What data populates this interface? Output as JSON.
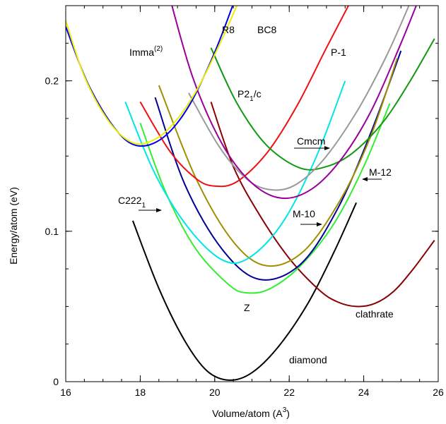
{
  "chart_data": {
    "type": "line",
    "xlabel": "Volume/atom (A",
    "xlabel_sup": "3",
    "xlabel_suffix": ")",
    "ylabel": "Energy/atom (eV)",
    "xlim": [
      16,
      26
    ],
    "ylim": [
      0,
      0.25
    ],
    "xticks": [
      16,
      18,
      20,
      22,
      24,
      26
    ],
    "yticks": [
      0,
      0.1,
      0.2
    ],
    "ytick_labels": [
      "0",
      "0.1",
      "0.2"
    ],
    "minor_x_step": 0.5,
    "minor_y_step": 0.025,
    "grid": false,
    "series": [
      {
        "name": "diamond",
        "color": "#000000",
        "x": [
          17.8,
          18.5,
          19.2,
          19.8,
          20.4,
          21.0,
          21.7,
          22.5,
          23.2,
          23.8
        ],
        "y": [
          0.107,
          0.062,
          0.027,
          0.007,
          0.001,
          0.006,
          0.023,
          0.052,
          0.086,
          0.119
        ]
      },
      {
        "name": "clathrate",
        "color": "#8b0000",
        "x": [
          19.9,
          20.5,
          21.2,
          22.0,
          22.8,
          23.3,
          23.8,
          24.3,
          24.8,
          25.3,
          25.9
        ],
        "y": [
          0.186,
          0.143,
          0.111,
          0.082,
          0.061,
          0.053,
          0.05,
          0.052,
          0.06,
          0.074,
          0.094
        ]
      },
      {
        "name": "Z",
        "color": "#33ee33",
        "x": [
          18.0,
          18.7,
          19.5,
          20.4,
          20.9,
          21.5,
          22.3,
          23.2,
          24.0,
          24.7
        ],
        "y": [
          0.172,
          0.125,
          0.088,
          0.064,
          0.059,
          0.062,
          0.077,
          0.105,
          0.143,
          0.185
        ]
      },
      {
        "name": "M-12",
        "color": "#000099",
        "x": [
          18.4,
          19.2,
          20.2,
          21.2,
          22.3,
          23.3,
          24.2,
          25.0
        ],
        "y": [
          0.189,
          0.131,
          0.088,
          0.068,
          0.078,
          0.115,
          0.166,
          0.22
        ]
      },
      {
        "name": "M-10",
        "color": "#a09000",
        "x": [
          18.5,
          19.5,
          20.5,
          21.4,
          22.4,
          23.4,
          24.2,
          24.9
        ],
        "y": [
          0.197,
          0.135,
          0.093,
          0.077,
          0.087,
          0.122,
          0.164,
          0.215
        ]
      },
      {
        "name": "C222_1",
        "color": "#00e5e5",
        "x": [
          17.6,
          18.4,
          19.3,
          20.2,
          20.9,
          21.8,
          22.7,
          23.5
        ],
        "y": [
          0.186,
          0.138,
          0.102,
          0.081,
          0.082,
          0.105,
          0.148,
          0.2
        ]
      },
      {
        "name": "P-1",
        "color": "#ee1111",
        "x": [
          18.0,
          18.8,
          19.5,
          20.0,
          20.6,
          21.4,
          22.2,
          23.0,
          23.8
        ],
        "y": [
          0.186,
          0.153,
          0.135,
          0.13,
          0.133,
          0.152,
          0.183,
          0.222,
          0.26
        ]
      },
      {
        "name": "Cmcm",
        "color": "#119911",
        "x": [
          19.9,
          20.6,
          21.4,
          22.3,
          23.0,
          23.7,
          24.5,
          25.2,
          25.9
        ],
        "y": [
          0.222,
          0.185,
          0.157,
          0.142,
          0.143,
          0.152,
          0.172,
          0.198,
          0.228
        ]
      },
      {
        "name": "P2_1/c",
        "color": "#999999",
        "x": [
          19.3,
          20.1,
          20.8,
          21.4,
          22.1,
          22.9,
          23.8,
          24.6,
          25.3
        ],
        "y": [
          0.192,
          0.157,
          0.136,
          0.128,
          0.13,
          0.147,
          0.179,
          0.216,
          0.255
        ]
      },
      {
        "name": "R8",
        "color": "#990099",
        "x": [
          18.7,
          19.4,
          20.2,
          21.0,
          21.8,
          22.6,
          23.4,
          24.2,
          25.0,
          25.6
        ],
        "y": [
          0.264,
          0.203,
          0.158,
          0.132,
          0.122,
          0.128,
          0.148,
          0.18,
          0.225,
          0.262
        ]
      },
      {
        "name": "BC8",
        "color": "#0000ee",
        "x": [
          16.0,
          16.6,
          17.3,
          17.9,
          18.6,
          19.3,
          20.0,
          20.6
        ],
        "y": [
          0.236,
          0.198,
          0.169,
          0.157,
          0.162,
          0.183,
          0.219,
          0.258
        ]
      },
      {
        "name": "Imma(2)",
        "color": "#eeee00",
        "x": [
          16.0,
          16.5,
          17.1,
          17.7,
          18.2,
          18.8,
          19.5,
          20.2,
          20.8
        ],
        "y": [
          0.24,
          0.203,
          0.175,
          0.16,
          0.159,
          0.169,
          0.193,
          0.228,
          0.262
        ]
      }
    ],
    "annotations": {
      "R8": "R8",
      "BC8": "BC8",
      "imma_base": "Imma",
      "imma_sup": "(2)",
      "P-1": "P-1",
      "p21c_base": "P2",
      "p21c_sub": "1",
      "p21c_suffix": "/c",
      "Cmcm": "Cmcm",
      "M-12": "M-12",
      "c2221_base": "C222",
      "c2221_sub": "1",
      "M-10": "M-10",
      "Z": "Z",
      "clathrate": "clathrate",
      "diamond": "diamond"
    }
  }
}
